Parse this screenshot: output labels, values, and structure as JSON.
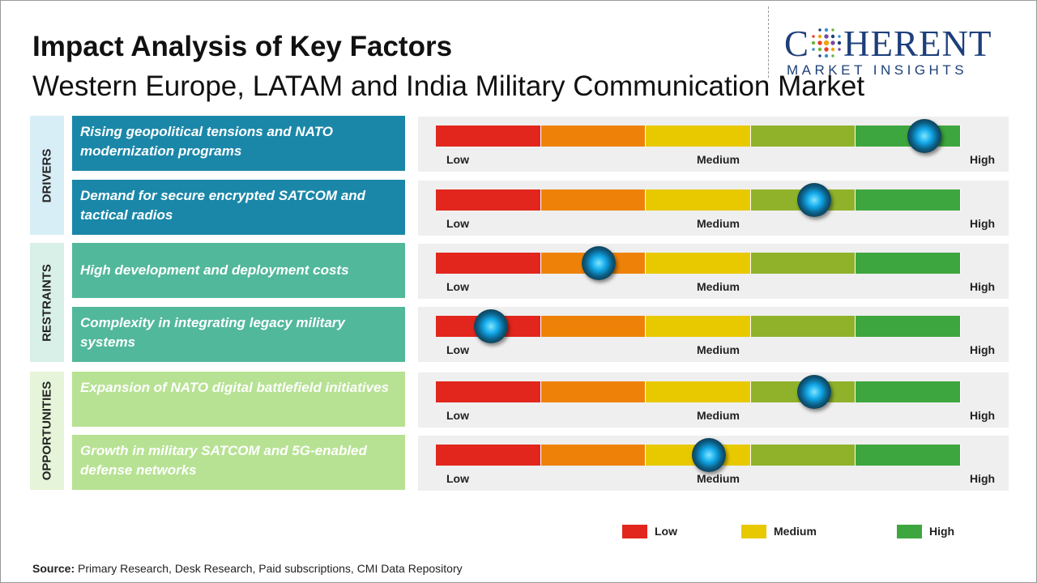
{
  "title": "Impact Analysis of Key Factors",
  "subtitle": "Western Europe, LATAM and India Military Communication Market",
  "logo": {
    "main": "COHERENT",
    "sub": "MARKET INSIGHTS"
  },
  "colors": {
    "scale": [
      "#e2261d",
      "#ee8208",
      "#e8c900",
      "#8fb22a",
      "#3ea63e"
    ],
    "drivers_box": "#1b87a8",
    "drivers_label_bg": "#d8eef7",
    "restraints_box": "#52b89b",
    "restraints_label_bg": "#d8f0e8",
    "opportunities_box": "#b7e293",
    "opportunities_label_bg": "#e6f5d9"
  },
  "categories": [
    {
      "name": "DRIVERS",
      "factors": [
        {
          "text": "Rising geopolitical tensions and NATO modernization programs",
          "level": 0.93
        },
        {
          "text": "Demand for secure encrypted SATCOM and tactical radios",
          "level": 0.72
        }
      ]
    },
    {
      "name": "RESTRAINTS",
      "factors": [
        {
          "text": "High development and deployment costs",
          "level": 0.31
        },
        {
          "text": "Complexity in integrating legacy military systems",
          "level": 0.105
        }
      ]
    },
    {
      "name": "OPPORTUNITIES",
      "factors": [
        {
          "text": "Expansion of NATO digital battlefield initiatives",
          "level": 0.72
        },
        {
          "text": "Growth in military SATCOM and 5G-enabled defense networks",
          "level": 0.52
        }
      ]
    }
  ],
  "scale_labels": {
    "low": "Low",
    "medium": "Medium",
    "high": "High"
  },
  "legend": [
    {
      "label": "Low",
      "color": "#e2261d"
    },
    {
      "label": "Medium",
      "color": "#e8c900"
    },
    {
      "label": "High",
      "color": "#3ea63e"
    }
  ],
  "source": {
    "label": "Source:",
    "text": " Primary Research, Desk Research, Paid subscriptions, CMI Data Repository"
  }
}
